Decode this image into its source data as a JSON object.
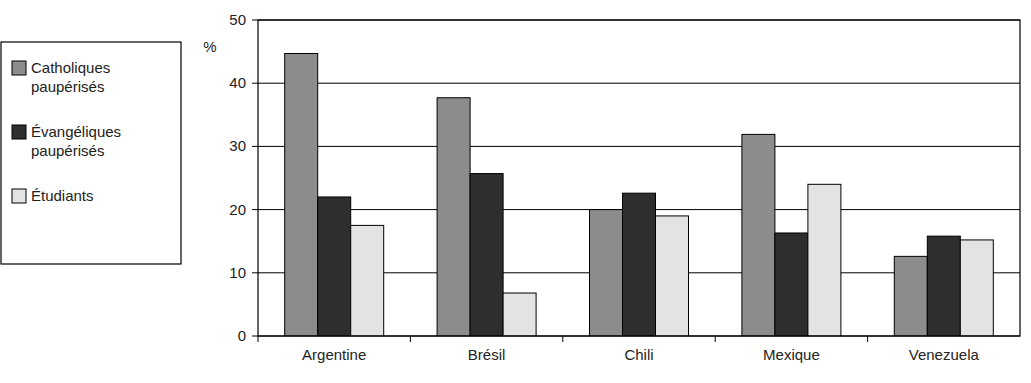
{
  "chart_data": {
    "type": "bar",
    "y_label": "%",
    "categories": [
      "Argentine",
      "Brésil",
      "Chili",
      "Mexique",
      "Venezuela"
    ],
    "series": [
      {
        "name": "Catholiques paupérisés",
        "color": "#8c8c8c",
        "values": [
          44.7,
          37.7,
          20,
          31.9,
          12.6
        ]
      },
      {
        "name": "Évangéliques paupérisés",
        "color": "#2e2e2e",
        "values": [
          22,
          25.7,
          22.6,
          16.3,
          15.8
        ]
      },
      {
        "name": "Étudiants",
        "color": "#e3e3e3",
        "values": [
          17.5,
          6.8,
          19,
          24,
          15.2
        ]
      }
    ],
    "ylim": [
      0,
      50
    ],
    "yticks": [
      0,
      10,
      20,
      30,
      40,
      50
    ],
    "grid": true,
    "legend": "left"
  }
}
